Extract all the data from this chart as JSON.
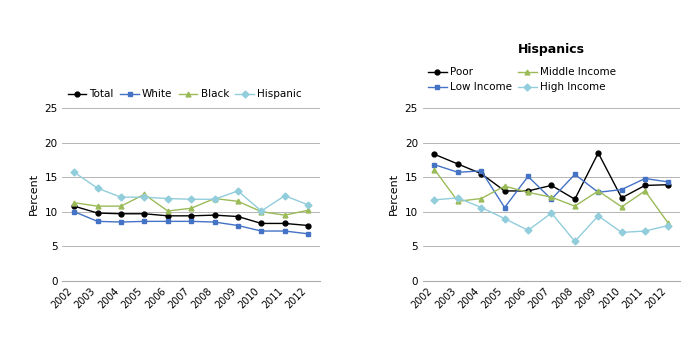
{
  "years": [
    2002,
    2003,
    2004,
    2005,
    2006,
    2007,
    2008,
    2009,
    2010,
    2011,
    2012
  ],
  "left_chart": {
    "Total": [
      10.8,
      9.8,
      9.7,
      9.7,
      9.4,
      9.4,
      9.5,
      9.3,
      8.3,
      8.3,
      8.0
    ],
    "White": [
      10.0,
      8.6,
      8.5,
      8.6,
      8.6,
      8.6,
      8.5,
      8.0,
      7.2,
      7.2,
      6.8
    ],
    "Black": [
      11.3,
      10.8,
      10.8,
      12.5,
      10.1,
      10.5,
      11.9,
      11.5,
      10.0,
      9.5,
      10.2
    ],
    "Hispanic": [
      15.7,
      13.4,
      12.1,
      12.1,
      11.9,
      11.8,
      11.8,
      13.0,
      10.1,
      12.3,
      11.0
    ]
  },
  "right_chart": {
    "Poor": [
      18.3,
      16.9,
      15.5,
      13.0,
      13.0,
      13.8,
      11.8,
      18.5,
      12.0,
      13.8,
      13.9
    ],
    "Low Income": [
      16.8,
      15.7,
      15.9,
      10.6,
      15.1,
      11.8,
      15.4,
      12.8,
      13.2,
      14.8,
      14.3
    ],
    "Middle Income": [
      16.1,
      11.5,
      11.9,
      13.7,
      12.8,
      12.1,
      10.8,
      13.0,
      10.7,
      13.0,
      8.3
    ],
    "High Income": [
      11.7,
      12.0,
      10.6,
      9.0,
      7.3,
      9.8,
      5.7,
      9.4,
      7.0,
      7.2,
      8.0
    ]
  },
  "left_colors": {
    "Total": "#000000",
    "White": "#4472c4",
    "Black": "#9bbb59",
    "Hispanic": "#92cddc"
  },
  "right_colors": {
    "Poor": "#000000",
    "Low Income": "#4472c4",
    "Middle Income": "#9bbb59",
    "High Income": "#92cddc"
  },
  "left_markers": {
    "Total": "o",
    "White": "s",
    "Black": "^",
    "Hispanic": "D"
  },
  "right_markers": {
    "Poor": "o",
    "Low Income": "s",
    "Middle Income": "^",
    "High Income": "D"
  },
  "ylim": [
    0,
    25
  ],
  "yticks": [
    0,
    5,
    10,
    15,
    20,
    25
  ],
  "ylabel": "Percent",
  "right_title": "Hispanics",
  "background_color": "#ffffff"
}
